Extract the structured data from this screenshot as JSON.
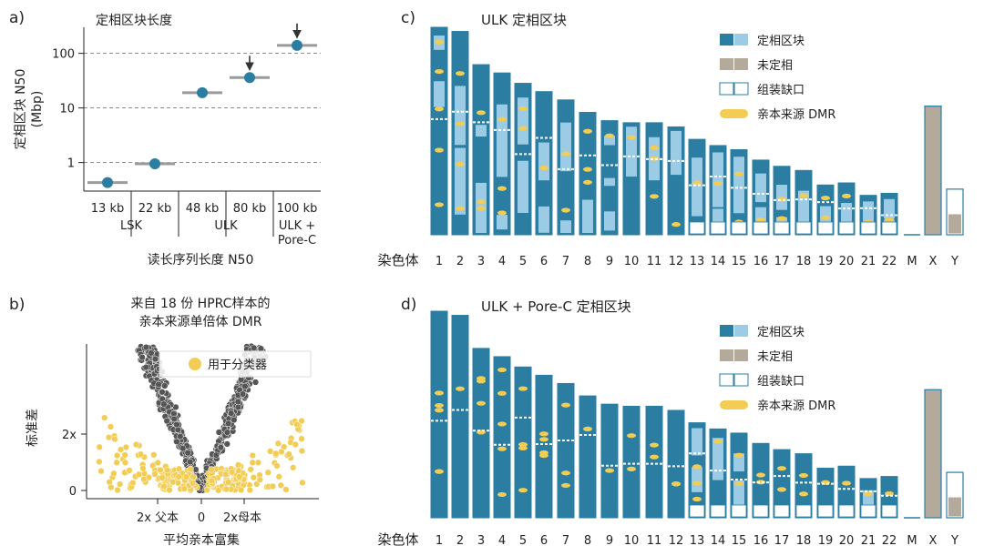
{
  "panel_labels": {
    "a": "a)",
    "b": "b)",
    "c": "c)",
    "d": "d)"
  },
  "colors": {
    "phased_dark": "#2b7ea1",
    "phased_light": "#9ccbe6",
    "unphased": "#b3aa9c",
    "gap_border": "#2b7ea1",
    "dmr": "#f2cd55",
    "median": "#9a9a9a",
    "point": "#2b7ea1",
    "volcano_grey": "#555555"
  },
  "chart_data": [
    {
      "type": "scatter",
      "title": "定相区块长度",
      "ylabel": "定相区块 N50 (Mbp)",
      "ylabel_line1": "定相区块 N50",
      "ylabel_line2": "(Mbp)",
      "xlabel": "读长序列长度 N50",
      "yscale": "log",
      "ylim": [
        0.3,
        300
      ],
      "yticks": [
        "1",
        "10",
        "100"
      ],
      "ytick_values": [
        1,
        10,
        100
      ],
      "grid": "dashed horizontal",
      "categories": [
        "13 kb",
        "22 kb",
        "48 kb",
        "80 kb",
        "100 kb"
      ],
      "groups": [
        {
          "label": "LSK",
          "from": 0,
          "to": 1
        },
        {
          "label": "ULK",
          "from": 2,
          "to": 3
        },
        {
          "label": "ULK +\nPore-C",
          "label_line1": "ULK +",
          "label_line2": "Pore-C",
          "from": 4,
          "to": 4
        }
      ],
      "values": [
        0.43,
        0.95,
        19,
        36,
        140
      ],
      "arrows_on": [
        3,
        4
      ]
    },
    {
      "type": "scatter",
      "title": "来自 18 份 HPRC样本的\n亲本来源单倍体 DMR",
      "title_line1": "来自 18 份 HPRC样本的",
      "title_line2": "亲本来源单倍体 DMR",
      "xlabel": "平均亲本富集",
      "ylabel": "标准差",
      "xticks": [
        "2x 父本",
        "0",
        "2x母本"
      ],
      "yticks": [
        "0",
        "2x"
      ],
      "legend": {
        "label": "用于分类器",
        "position": "top-right"
      }
    },
    {
      "type": "bar",
      "title": "ULK 定相区块",
      "xlabel": "染色体",
      "categories": [
        "1",
        "2",
        "3",
        "4",
        "5",
        "6",
        "7",
        "8",
        "9",
        "10",
        "11",
        "12",
        "13",
        "14",
        "15",
        "16",
        "17",
        "18",
        "19",
        "20",
        "21",
        "22",
        "M",
        "X",
        "Y"
      ],
      "relative_lengths": [
        1.0,
        0.98,
        0.82,
        0.78,
        0.73,
        0.69,
        0.65,
        0.59,
        0.55,
        0.54,
        0.54,
        0.52,
        0.46,
        0.43,
        0.41,
        0.36,
        0.33,
        0.31,
        0.24,
        0.25,
        0.19,
        0.2,
        0.0,
        0.62,
        0.22
      ],
      "legend": {
        "items": [
          "定相区块",
          "未定相",
          "组装缺口",
          "亲本来源 DMR"
        ],
        "position": "top-right"
      }
    },
    {
      "type": "bar",
      "title": "ULK + Pore-C 定相区块",
      "xlabel": "染色体",
      "categories": [
        "1",
        "2",
        "3",
        "4",
        "5",
        "6",
        "7",
        "8",
        "9",
        "10",
        "11",
        "12",
        "13",
        "14",
        "15",
        "16",
        "17",
        "18",
        "19",
        "20",
        "21",
        "22",
        "M",
        "X",
        "Y"
      ],
      "relative_lengths": [
        1.0,
        0.98,
        0.82,
        0.78,
        0.73,
        0.69,
        0.65,
        0.59,
        0.55,
        0.54,
        0.54,
        0.52,
        0.46,
        0.43,
        0.41,
        0.36,
        0.33,
        0.31,
        0.24,
        0.25,
        0.19,
        0.2,
        0.0,
        0.62,
        0.22
      ],
      "legend": {
        "items": [
          "定相区块",
          "未定相",
          "组装缺口",
          "亲本来源 DMR"
        ],
        "position": "top-right"
      }
    }
  ]
}
